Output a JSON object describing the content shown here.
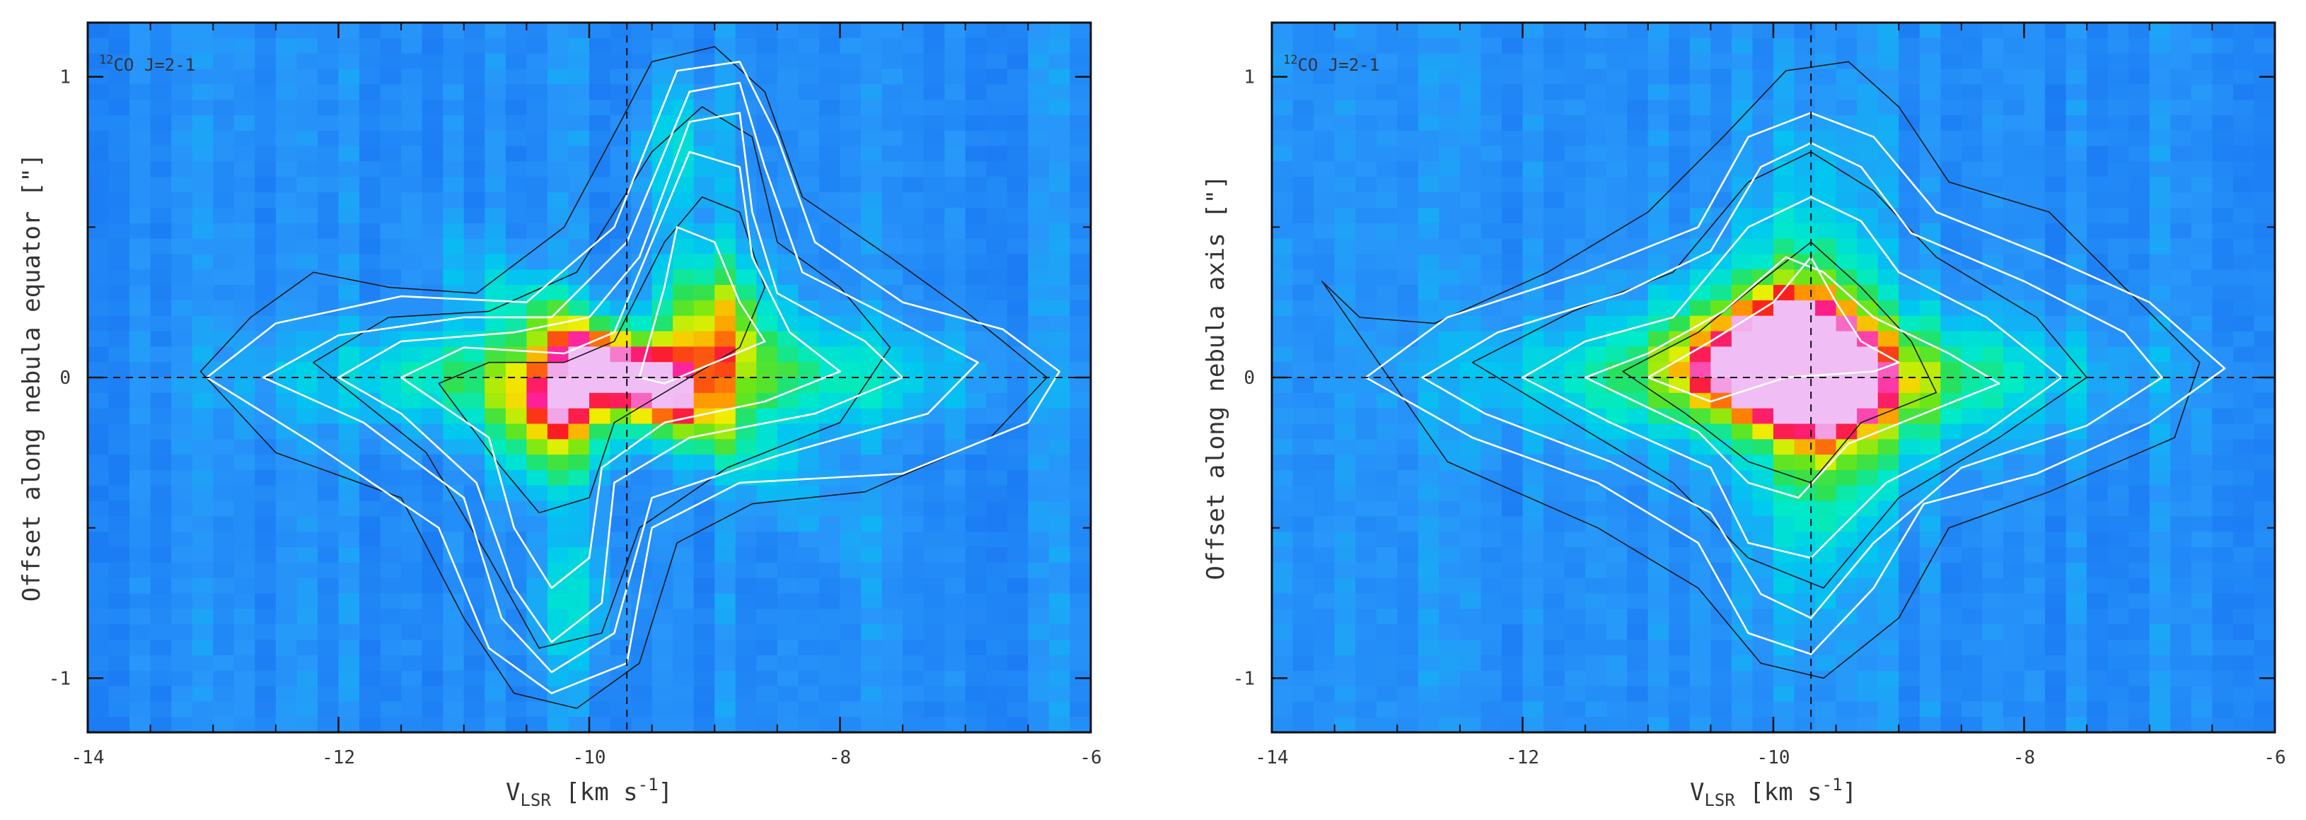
{
  "chart_data": [
    {
      "type": "heatmap",
      "panel": "left",
      "label": "CO J=2-1",
      "label_sup": "12",
      "xlabel": "V",
      "xlabel_sub": "LSR",
      "xlabel_units": "[km s",
      "xlabel_exp": "-1",
      "xlabel_close": "]",
      "ylabel": "Offset along nebula equator [\"]",
      "xlim": [
        -14,
        -6
      ],
      "ylim": [
        -1.18,
        1.18
      ],
      "xticks": [
        "-14",
        "-12",
        "-10",
        "-8",
        "-6"
      ],
      "yticks": [
        "-1",
        "0",
        "1"
      ],
      "xtick_values": [
        -14,
        -12,
        -10,
        -8,
        -6
      ],
      "ytick_values": [
        -1,
        0,
        1
      ],
      "reference_lines": {
        "v_sys": -9.7,
        "offset": 0
      },
      "peaks": [
        {
          "v": -10.3,
          "offset": -0.17
        },
        {
          "v": -9.0,
          "offset": 0.22
        }
      ],
      "white_contours": [
        [
          [
            -13.05,
            0
          ],
          [
            -12.5,
            0.18
          ],
          [
            -11.5,
            0.27
          ],
          [
            -10.5,
            0.25
          ],
          [
            -9.8,
            0.5
          ],
          [
            -9.3,
            1.02
          ],
          [
            -8.8,
            1.05
          ],
          [
            -8.5,
            0.8
          ],
          [
            -8.2,
            0.45
          ],
          [
            -7.5,
            0.25
          ],
          [
            -6.7,
            0.16
          ],
          [
            -6.25,
            0.02
          ],
          [
            -6.5,
            -0.15
          ],
          [
            -7.5,
            -0.32
          ],
          [
            -8.8,
            -0.35
          ],
          [
            -9.5,
            -0.5
          ],
          [
            -9.7,
            -0.95
          ],
          [
            -10.3,
            -1.05
          ],
          [
            -10.8,
            -0.9
          ],
          [
            -11.2,
            -0.5
          ],
          [
            -12.2,
            -0.22
          ],
          [
            -13.05,
            0
          ]
        ],
        [
          [
            -12.6,
            0
          ],
          [
            -12.0,
            0.14
          ],
          [
            -11.0,
            0.2
          ],
          [
            -10.3,
            0.2
          ],
          [
            -9.7,
            0.45
          ],
          [
            -9.2,
            0.95
          ],
          [
            -8.8,
            0.98
          ],
          [
            -8.6,
            0.7
          ],
          [
            -8.3,
            0.35
          ],
          [
            -7.5,
            0.18
          ],
          [
            -6.9,
            0.05
          ],
          [
            -7.3,
            -0.12
          ],
          [
            -8.5,
            -0.26
          ],
          [
            -9.5,
            -0.4
          ],
          [
            -9.8,
            -0.85
          ],
          [
            -10.3,
            -0.98
          ],
          [
            -10.7,
            -0.8
          ],
          [
            -11.0,
            -0.4
          ],
          [
            -11.8,
            -0.15
          ],
          [
            -12.6,
            0
          ]
        ],
        [
          [
            -12.0,
            0
          ],
          [
            -11.5,
            0.12
          ],
          [
            -10.6,
            0.15
          ],
          [
            -10.0,
            0.2
          ],
          [
            -9.6,
            0.4
          ],
          [
            -9.2,
            0.85
          ],
          [
            -8.8,
            0.88
          ],
          [
            -8.7,
            0.55
          ],
          [
            -8.5,
            0.28
          ],
          [
            -7.8,
            0.12
          ],
          [
            -7.5,
            0.0
          ],
          [
            -8.2,
            -0.12
          ],
          [
            -9.2,
            -0.2
          ],
          [
            -9.8,
            -0.35
          ],
          [
            -9.9,
            -0.75
          ],
          [
            -10.3,
            -0.88
          ],
          [
            -10.6,
            -0.7
          ],
          [
            -10.9,
            -0.35
          ],
          [
            -11.5,
            -0.12
          ],
          [
            -12.0,
            0
          ]
        ],
        [
          [
            -11.5,
            0
          ],
          [
            -11.0,
            0.1
          ],
          [
            -10.2,
            0.08
          ],
          [
            -9.8,
            0.15
          ],
          [
            -9.4,
            0.55
          ],
          [
            -9.2,
            0.75
          ],
          [
            -8.8,
            0.7
          ],
          [
            -8.7,
            0.4
          ],
          [
            -8.4,
            0.15
          ],
          [
            -8.0,
            0.02
          ],
          [
            -8.6,
            -0.08
          ],
          [
            -9.4,
            -0.15
          ],
          [
            -9.9,
            -0.3
          ],
          [
            -10.0,
            -0.6
          ],
          [
            -10.3,
            -0.7
          ],
          [
            -10.6,
            -0.5
          ],
          [
            -10.8,
            -0.2
          ],
          [
            -11.5,
            0
          ]
        ],
        [
          [
            -9.6,
            0.0
          ],
          [
            -9.4,
            0.3
          ],
          [
            -9.3,
            0.5
          ],
          [
            -9.0,
            0.45
          ],
          [
            -8.8,
            0.25
          ],
          [
            -8.6,
            0.12
          ],
          [
            -9.0,
            0.05
          ],
          [
            -9.4,
            -0.02
          ],
          [
            -9.6,
            0.0
          ]
        ]
      ],
      "black_contours": [
        [
          [
            -13.1,
            0.02
          ],
          [
            -12.7,
            0.2
          ],
          [
            -12.2,
            0.35
          ],
          [
            -11.6,
            0.3
          ],
          [
            -10.9,
            0.28
          ],
          [
            -10.2,
            0.5
          ],
          [
            -9.75,
            0.85
          ],
          [
            -9.5,
            1.05
          ],
          [
            -9.0,
            1.1
          ],
          [
            -8.6,
            0.95
          ],
          [
            -8.3,
            0.6
          ],
          [
            -7.6,
            0.4
          ],
          [
            -7.0,
            0.22
          ],
          [
            -6.7,
            0.12
          ],
          [
            -6.35,
            0.0
          ],
          [
            -6.8,
            -0.2
          ],
          [
            -7.8,
            -0.38
          ],
          [
            -8.7,
            -0.42
          ],
          [
            -9.3,
            -0.55
          ],
          [
            -9.6,
            -0.95
          ],
          [
            -10.1,
            -1.1
          ],
          [
            -10.6,
            -1.05
          ],
          [
            -11.0,
            -0.8
          ],
          [
            -11.5,
            -0.4
          ],
          [
            -12.5,
            -0.25
          ],
          [
            -13.1,
            0.02
          ]
        ],
        [
          [
            -12.2,
            0.05
          ],
          [
            -11.6,
            0.2
          ],
          [
            -10.8,
            0.22
          ],
          [
            -10.1,
            0.35
          ],
          [
            -9.5,
            0.75
          ],
          [
            -9.1,
            0.9
          ],
          [
            -8.7,
            0.8
          ],
          [
            -8.5,
            0.45
          ],
          [
            -8.0,
            0.3
          ],
          [
            -7.6,
            0.1
          ],
          [
            -8.0,
            -0.15
          ],
          [
            -8.9,
            -0.3
          ],
          [
            -9.6,
            -0.5
          ],
          [
            -9.9,
            -0.85
          ],
          [
            -10.4,
            -0.9
          ],
          [
            -10.8,
            -0.6
          ],
          [
            -11.3,
            -0.25
          ],
          [
            -12.2,
            0.05
          ]
        ],
        [
          [
            -11.2,
            -0.02
          ],
          [
            -10.8,
            0.05
          ],
          [
            -10.2,
            0.05
          ],
          [
            -9.8,
            0.12
          ],
          [
            -9.4,
            0.45
          ],
          [
            -9.1,
            0.6
          ],
          [
            -8.8,
            0.55
          ],
          [
            -8.6,
            0.3
          ],
          [
            -8.8,
            0.1
          ],
          [
            -9.4,
            -0.05
          ],
          [
            -9.8,
            -0.15
          ],
          [
            -10.0,
            -0.4
          ],
          [
            -10.4,
            -0.45
          ],
          [
            -10.7,
            -0.3
          ],
          [
            -11.2,
            -0.02
          ]
        ]
      ]
    },
    {
      "type": "heatmap",
      "panel": "right",
      "label": "CO J=2-1",
      "label_sup": "12",
      "xlabel": "V",
      "xlabel_sub": "LSR",
      "xlabel_units": "[km s",
      "xlabel_exp": "-1",
      "xlabel_close": "]",
      "ylabel": "Offset along nebula axis [\"]",
      "xlim": [
        -14,
        -6
      ],
      "ylim": [
        -1.18,
        1.18
      ],
      "xticks": [
        "-14",
        "-12",
        "-10",
        "-8",
        "-6"
      ],
      "yticks": [
        "-1",
        "0",
        "1"
      ],
      "xtick_values": [
        -14,
        -12,
        -10,
        -8,
        -6
      ],
      "ytick_values": [
        -1,
        0,
        1
      ],
      "reference_lines": {
        "v_sys": -9.7,
        "offset": 0
      },
      "peaks": [
        {
          "v": -10.0,
          "offset": 0.12
        }
      ],
      "white_contours": [
        [
          [
            -13.25,
            0
          ],
          [
            -12.6,
            0.2
          ],
          [
            -11.5,
            0.35
          ],
          [
            -10.6,
            0.5
          ],
          [
            -10.2,
            0.8
          ],
          [
            -9.7,
            0.88
          ],
          [
            -9.2,
            0.8
          ],
          [
            -8.7,
            0.55
          ],
          [
            -7.8,
            0.4
          ],
          [
            -7.0,
            0.25
          ],
          [
            -6.4,
            0.03
          ],
          [
            -7.0,
            -0.15
          ],
          [
            -7.9,
            -0.32
          ],
          [
            -8.8,
            -0.42
          ],
          [
            -9.2,
            -0.7
          ],
          [
            -9.7,
            -0.92
          ],
          [
            -10.2,
            -0.85
          ],
          [
            -10.6,
            -0.55
          ],
          [
            -11.4,
            -0.35
          ],
          [
            -12.4,
            -0.2
          ],
          [
            -13.25,
            0
          ]
        ],
        [
          [
            -12.8,
            0
          ],
          [
            -12.2,
            0.15
          ],
          [
            -11.2,
            0.28
          ],
          [
            -10.5,
            0.42
          ],
          [
            -10.1,
            0.7
          ],
          [
            -9.7,
            0.78
          ],
          [
            -9.3,
            0.7
          ],
          [
            -8.9,
            0.48
          ],
          [
            -8.0,
            0.32
          ],
          [
            -7.2,
            0.15
          ],
          [
            -6.9,
            0.0
          ],
          [
            -7.5,
            -0.16
          ],
          [
            -8.5,
            -0.3
          ],
          [
            -9.2,
            -0.55
          ],
          [
            -9.7,
            -0.8
          ],
          [
            -10.1,
            -0.72
          ],
          [
            -10.5,
            -0.45
          ],
          [
            -11.3,
            -0.28
          ],
          [
            -12.3,
            -0.12
          ],
          [
            -12.8,
            0
          ]
        ],
        [
          [
            -12.0,
            0
          ],
          [
            -11.5,
            0.12
          ],
          [
            -10.8,
            0.2
          ],
          [
            -10.2,
            0.5
          ],
          [
            -9.7,
            0.6
          ],
          [
            -9.3,
            0.52
          ],
          [
            -9.0,
            0.35
          ],
          [
            -8.3,
            0.2
          ],
          [
            -7.7,
            0.0
          ],
          [
            -8.3,
            -0.18
          ],
          [
            -9.1,
            -0.35
          ],
          [
            -9.7,
            -0.6
          ],
          [
            -10.2,
            -0.55
          ],
          [
            -10.5,
            -0.3
          ],
          [
            -11.3,
            -0.15
          ],
          [
            -12.0,
            0
          ]
        ],
        [
          [
            -11.5,
            0
          ],
          [
            -11.0,
            0.08
          ],
          [
            -10.4,
            0.22
          ],
          [
            -9.9,
            0.4
          ],
          [
            -9.6,
            0.35
          ],
          [
            -9.2,
            0.2
          ],
          [
            -8.6,
            0.08
          ],
          [
            -8.2,
            -0.02
          ],
          [
            -8.8,
            -0.12
          ],
          [
            -9.4,
            -0.22
          ],
          [
            -9.8,
            -0.4
          ],
          [
            -10.2,
            -0.35
          ],
          [
            -10.6,
            -0.18
          ],
          [
            -11.5,
            0
          ]
        ],
        [
          [
            -11.0,
            0.0
          ],
          [
            -10.5,
            0.12
          ],
          [
            -10.0,
            0.25
          ],
          [
            -9.7,
            0.4
          ],
          [
            -9.5,
            0.25
          ],
          [
            -9.3,
            0.12
          ],
          [
            -9.0,
            0.05
          ],
          [
            -9.2,
            0.02
          ],
          [
            -9.9,
            0.0
          ],
          [
            -10.5,
            -0.08
          ],
          [
            -11.0,
            0.0
          ]
        ]
      ],
      "black_contours": [
        [
          [
            -13.6,
            0.32
          ],
          [
            -13.3,
            0.2
          ],
          [
            -12.7,
            0.18
          ],
          [
            -11.8,
            0.35
          ],
          [
            -11.0,
            0.55
          ],
          [
            -10.4,
            0.8
          ],
          [
            -9.9,
            1.02
          ],
          [
            -9.4,
            1.05
          ],
          [
            -9.0,
            0.9
          ],
          [
            -8.6,
            0.65
          ],
          [
            -7.8,
            0.55
          ],
          [
            -7.2,
            0.3
          ],
          [
            -6.6,
            0.05
          ],
          [
            -6.8,
            -0.2
          ],
          [
            -7.8,
            -0.38
          ],
          [
            -8.6,
            -0.5
          ],
          [
            -9.0,
            -0.8
          ],
          [
            -9.6,
            -1.0
          ],
          [
            -10.1,
            -0.95
          ],
          [
            -10.6,
            -0.7
          ],
          [
            -11.4,
            -0.5
          ],
          [
            -12.6,
            -0.28
          ],
          [
            -13.6,
            0.32
          ]
        ],
        [
          [
            -12.4,
            0.05
          ],
          [
            -11.6,
            0.22
          ],
          [
            -10.8,
            0.35
          ],
          [
            -10.2,
            0.65
          ],
          [
            -9.7,
            0.75
          ],
          [
            -9.2,
            0.62
          ],
          [
            -8.7,
            0.4
          ],
          [
            -7.9,
            0.2
          ],
          [
            -7.5,
            0.0
          ],
          [
            -8.2,
            -0.2
          ],
          [
            -9.0,
            -0.4
          ],
          [
            -9.6,
            -0.7
          ],
          [
            -10.2,
            -0.6
          ],
          [
            -10.8,
            -0.35
          ],
          [
            -11.6,
            -0.15
          ],
          [
            -12.4,
            0.05
          ]
        ],
        [
          [
            -11.2,
            0.02
          ],
          [
            -10.6,
            0.15
          ],
          [
            -10.1,
            0.32
          ],
          [
            -9.7,
            0.45
          ],
          [
            -9.3,
            0.3
          ],
          [
            -8.9,
            0.12
          ],
          [
            -8.7,
            -0.05
          ],
          [
            -9.3,
            -0.15
          ],
          [
            -9.7,
            -0.35
          ],
          [
            -10.2,
            -0.28
          ],
          [
            -10.7,
            -0.12
          ],
          [
            -11.2,
            0.02
          ]
        ]
      ]
    }
  ]
}
